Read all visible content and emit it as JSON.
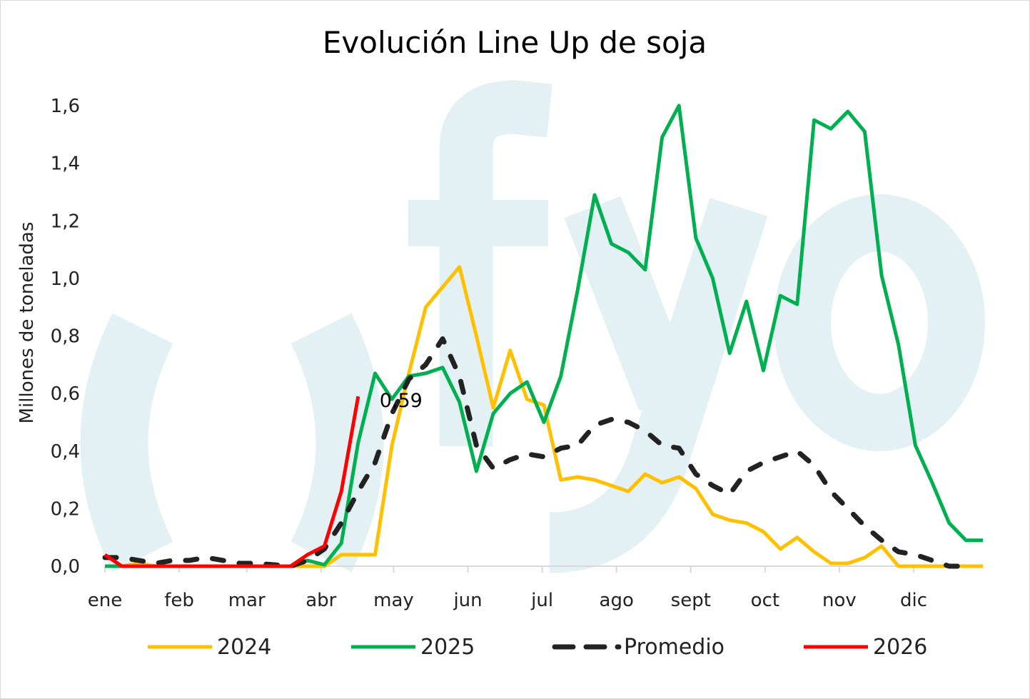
{
  "chart_data": {
    "type": "line",
    "title": "Evolución Line Up de soja",
    "xlabel": "",
    "ylabel": "Millones de toneladas",
    "ylim": [
      0,
      1.6
    ],
    "yticks": [
      "0,0",
      "0,2",
      "0,4",
      "0,6",
      "0,8",
      "1,0",
      "1,2",
      "1,4",
      "1,6"
    ],
    "ytick_values": [
      0,
      0.2,
      0.4,
      0.6,
      0.8,
      1.0,
      1.2,
      1.4,
      1.6
    ],
    "x_unit": "week of year (0-52)",
    "month_labels": [
      "ene",
      "feb",
      "mar",
      "abr",
      "may",
      "jun",
      "jul",
      "ago",
      "sept",
      "oct",
      "nov",
      "dic"
    ],
    "month_weeks": [
      0,
      4.4,
      8.4,
      12.8,
      17.1,
      21.5,
      25.9,
      30.3,
      34.7,
      39.1,
      43.5,
      47.9
    ],
    "legend_position": "bottom",
    "watermark": "fyo",
    "series": [
      {
        "name": "2024",
        "color": "#FFC000",
        "dash": false,
        "values": [
          0,
          0,
          0.01,
          0,
          0,
          0,
          0,
          0,
          0,
          0,
          0,
          0,
          0,
          0,
          0.04,
          0.04,
          0.04,
          0.42,
          0.67,
          0.9,
          0.97,
          1.04,
          0.8,
          0.55,
          0.75,
          0.58,
          0.56,
          0.3,
          0.31,
          0.3,
          0.28,
          0.26,
          0.32,
          0.29,
          0.31,
          0.27,
          0.18,
          0.16,
          0.15,
          0.12,
          0.06,
          0.1,
          0.05,
          0.01,
          0.01,
          0.03,
          0.07,
          0,
          0,
          0,
          0,
          0,
          0
        ]
      },
      {
        "name": "2025",
        "color": "#00B050",
        "dash": false,
        "values": [
          0,
          0,
          0,
          0,
          0,
          0,
          0,
          0,
          0,
          0,
          0,
          0,
          0.02,
          0.005,
          0.08,
          0.43,
          0.67,
          0.58,
          0.66,
          0.67,
          0.69,
          0.57,
          0.33,
          0.53,
          0.6,
          0.64,
          0.5,
          0.66,
          0.96,
          1.29,
          1.12,
          1.09,
          1.03,
          1.49,
          1.6,
          1.14,
          1.0,
          0.74,
          0.92,
          0.68,
          0.94,
          0.91,
          1.55,
          1.52,
          1.58,
          1.51,
          1.01,
          0.77,
          0.42,
          0.29,
          0.15,
          0.09,
          0.09
        ]
      },
      {
        "name": "Promedio",
        "color": "#222222",
        "dash": true,
        "values": [
          0.03,
          0.03,
          0.02,
          0.01,
          0.02,
          0.02,
          0.03,
          0.02,
          0.01,
          0.01,
          0.005,
          0,
          0.02,
          0.06,
          0.15,
          0.26,
          0.36,
          0.53,
          0.65,
          0.7,
          0.79,
          0.66,
          0.42,
          0.34,
          0.37,
          0.39,
          0.38,
          0.41,
          0.42,
          0.49,
          0.51,
          0.5,
          0.47,
          0.42,
          0.41,
          0.32,
          0.28,
          0.25,
          0.33,
          0.36,
          0.38,
          0.4,
          0.35,
          0.26,
          0.2,
          0.14,
          0.09,
          0.05,
          0.04,
          0.02,
          0,
          0
        ]
      },
      {
        "name": "2026",
        "color": "#FF0000",
        "dash": false,
        "values": [
          0.04,
          0,
          0,
          0,
          0,
          0,
          0,
          0,
          0,
          0,
          0,
          0,
          0.04,
          0.07,
          0.26,
          0.59
        ]
      }
    ],
    "annotations": [
      {
        "text": "0,59",
        "series": "2026",
        "week": 15,
        "value": 0.59
      }
    ]
  }
}
